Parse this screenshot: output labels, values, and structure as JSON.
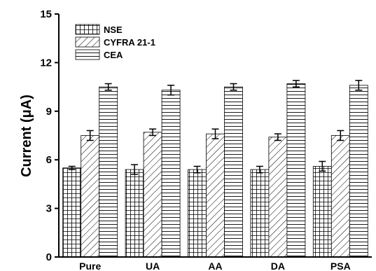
{
  "chart_data": {
    "type": "bar",
    "ylabel": "Current (μA)",
    "categories": [
      "Pure",
      "UA",
      "AA",
      "DA",
      "PSA"
    ],
    "ylim": [
      0,
      15
    ],
    "yticks": [
      0,
      3,
      6,
      9,
      12,
      15
    ],
    "yticks_labels": [
      "0",
      "3",
      "6",
      "9",
      "12",
      "15"
    ],
    "legend_position": "top-left",
    "grid": false,
    "series": [
      {
        "name": "NSE",
        "pattern": "grid",
        "values": [
          5.5,
          5.4,
          5.4,
          5.4,
          5.6
        ],
        "errors": [
          0.1,
          0.3,
          0.2,
          0.2,
          0.3
        ]
      },
      {
        "name": "CYFRA 21-1",
        "pattern": "diagonal",
        "values": [
          7.5,
          7.7,
          7.6,
          7.4,
          7.5
        ],
        "errors": [
          0.3,
          0.2,
          0.3,
          0.2,
          0.3
        ]
      },
      {
        "name": "CEA",
        "pattern": "horizontal",
        "values": [
          10.5,
          10.3,
          10.5,
          10.7,
          10.6
        ],
        "errors": [
          0.2,
          0.3,
          0.2,
          0.2,
          0.3
        ]
      }
    ]
  }
}
